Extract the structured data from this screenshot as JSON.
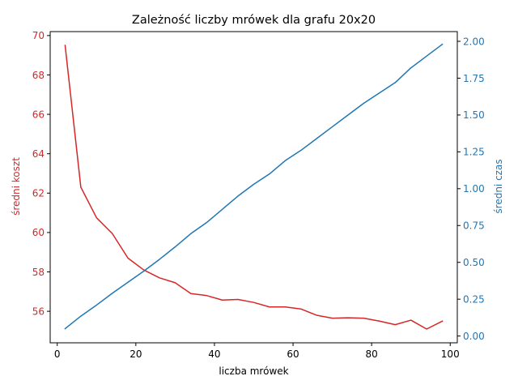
{
  "chart_data": {
    "type": "line",
    "title": "Zależność liczby mrówek dla grafu 20x20",
    "xlabel": "liczba mrówek",
    "xlim": [
      -1.8,
      101.8
    ],
    "xticks": [
      0,
      20,
      40,
      60,
      80,
      100
    ],
    "x": [
      2,
      6,
      10,
      14,
      18,
      22,
      26,
      30,
      34,
      38,
      42,
      46,
      50,
      54,
      58,
      62,
      66,
      70,
      74,
      78,
      82,
      86,
      90,
      94,
      98
    ],
    "y_left": {
      "label": "średni koszt",
      "color": "#d62728",
      "lim": [
        54.4,
        70.2
      ],
      "ticks": [
        56,
        58,
        60,
        62,
        64,
        66,
        68,
        70
      ]
    },
    "y_right": {
      "label": "średni czas",
      "color": "#1f77b4",
      "lim": [
        -0.046,
        2.066
      ],
      "ticks": [
        "0.00",
        "0.25",
        "0.50",
        "0.75",
        "1.00",
        "1.25",
        "1.50",
        "1.75",
        "2.00"
      ]
    },
    "series": [
      {
        "axis": "left",
        "color": "#d62728",
        "values": [
          69.5,
          62.3,
          60.75,
          59.95,
          58.7,
          58.1,
          57.7,
          57.45,
          56.9,
          56.8,
          56.57,
          56.6,
          56.45,
          56.22,
          56.22,
          56.12,
          55.8,
          55.65,
          55.67,
          55.65,
          55.5,
          55.32,
          55.55,
          55.1,
          55.5
        ]
      },
      {
        "axis": "right",
        "color": "#1f77b4",
        "values": [
          0.05,
          0.135,
          0.21,
          0.29,
          0.365,
          0.44,
          0.52,
          0.605,
          0.695,
          0.77,
          0.86,
          0.95,
          1.03,
          1.1,
          1.19,
          1.26,
          1.34,
          1.42,
          1.5,
          1.58,
          1.65,
          1.72,
          1.82,
          1.9,
          1.98
        ]
      }
    ]
  }
}
